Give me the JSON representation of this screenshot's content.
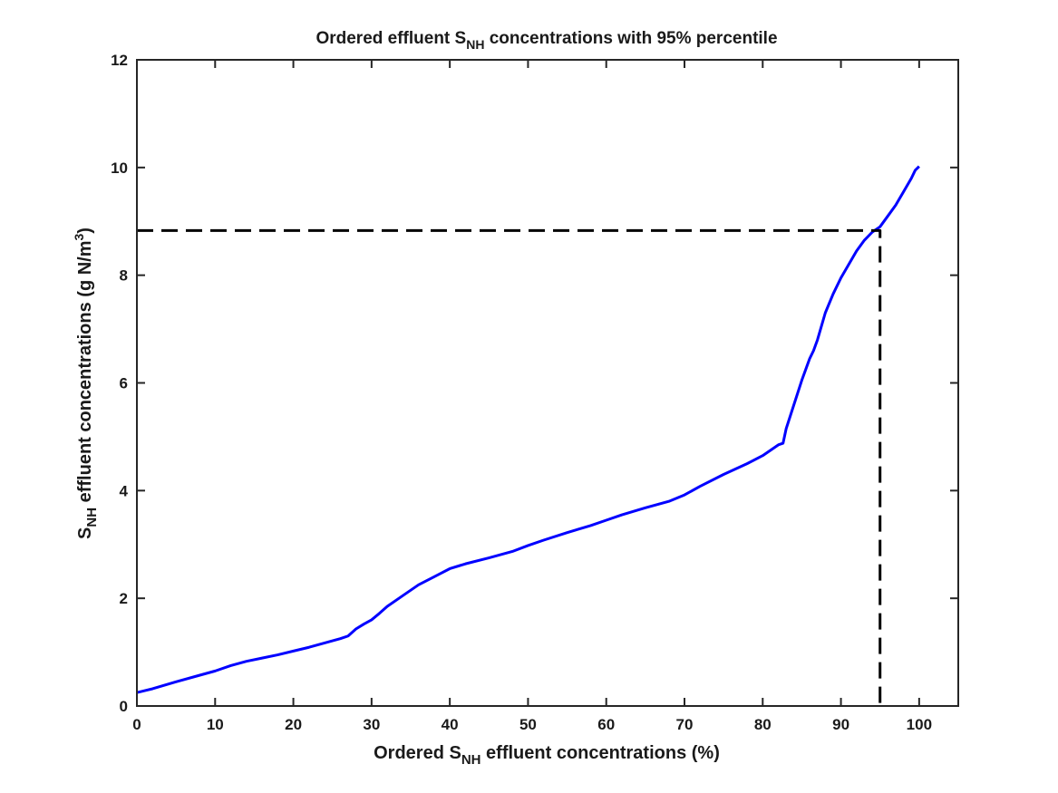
{
  "chart_data": {
    "type": "line",
    "title": {
      "before": "Ordered effluent S",
      "sub": "NH",
      "after": " concentrations with 95% percentile"
    },
    "xlabel": {
      "before": "Ordered S",
      "sub": "NH",
      "after": " effluent concentrations (%)"
    },
    "ylabel": {
      "before": "S",
      "sub": "NH",
      "after": " effluent concentrations (g N/m",
      "sup": "3",
      "end": ")"
    },
    "xlim": [
      0,
      105
    ],
    "ylim": [
      0,
      12
    ],
    "xticks": [
      0,
      10,
      20,
      30,
      40,
      50,
      60,
      70,
      80,
      90,
      100
    ],
    "yticks": [
      0,
      2,
      4,
      6,
      8,
      10,
      12
    ],
    "grid": false,
    "box": true,
    "series": [
      {
        "color": "#0000ff",
        "style": "solid",
        "x": [
          0,
          2,
          5,
          8,
          10,
          12,
          14,
          16,
          18,
          20,
          22,
          24,
          26,
          27,
          28,
          29,
          30,
          31,
          32,
          34,
          36,
          38,
          40,
          42,
          45,
          48,
          50,
          52,
          55,
          58,
          60,
          62,
          65,
          68,
          70,
          72,
          75,
          78,
          80,
          82,
          82.6,
          83,
          84,
          85,
          86,
          86.5,
          87,
          88,
          89,
          90,
          91,
          92,
          93,
          94,
          95,
          96,
          97,
          98,
          99,
          99.5,
          100
        ],
        "y": [
          0.25,
          0.32,
          0.45,
          0.57,
          0.65,
          0.75,
          0.83,
          0.89,
          0.95,
          1.02,
          1.09,
          1.17,
          1.25,
          1.3,
          1.43,
          1.52,
          1.6,
          1.72,
          1.85,
          2.05,
          2.25,
          2.4,
          2.55,
          2.64,
          2.75,
          2.87,
          2.98,
          3.08,
          3.22,
          3.35,
          3.45,
          3.55,
          3.68,
          3.8,
          3.92,
          4.08,
          4.3,
          4.5,
          4.65,
          4.85,
          4.88,
          5.15,
          5.6,
          6.05,
          6.45,
          6.6,
          6.8,
          7.3,
          7.65,
          7.95,
          8.2,
          8.45,
          8.65,
          8.8,
          8.9,
          9.1,
          9.3,
          9.55,
          9.8,
          9.95,
          10.02
        ]
      },
      {
        "color": "#000000",
        "style": "dashed",
        "x": [
          0,
          95,
          95
        ],
        "y": [
          8.83,
          8.83,
          0
        ]
      }
    ]
  }
}
